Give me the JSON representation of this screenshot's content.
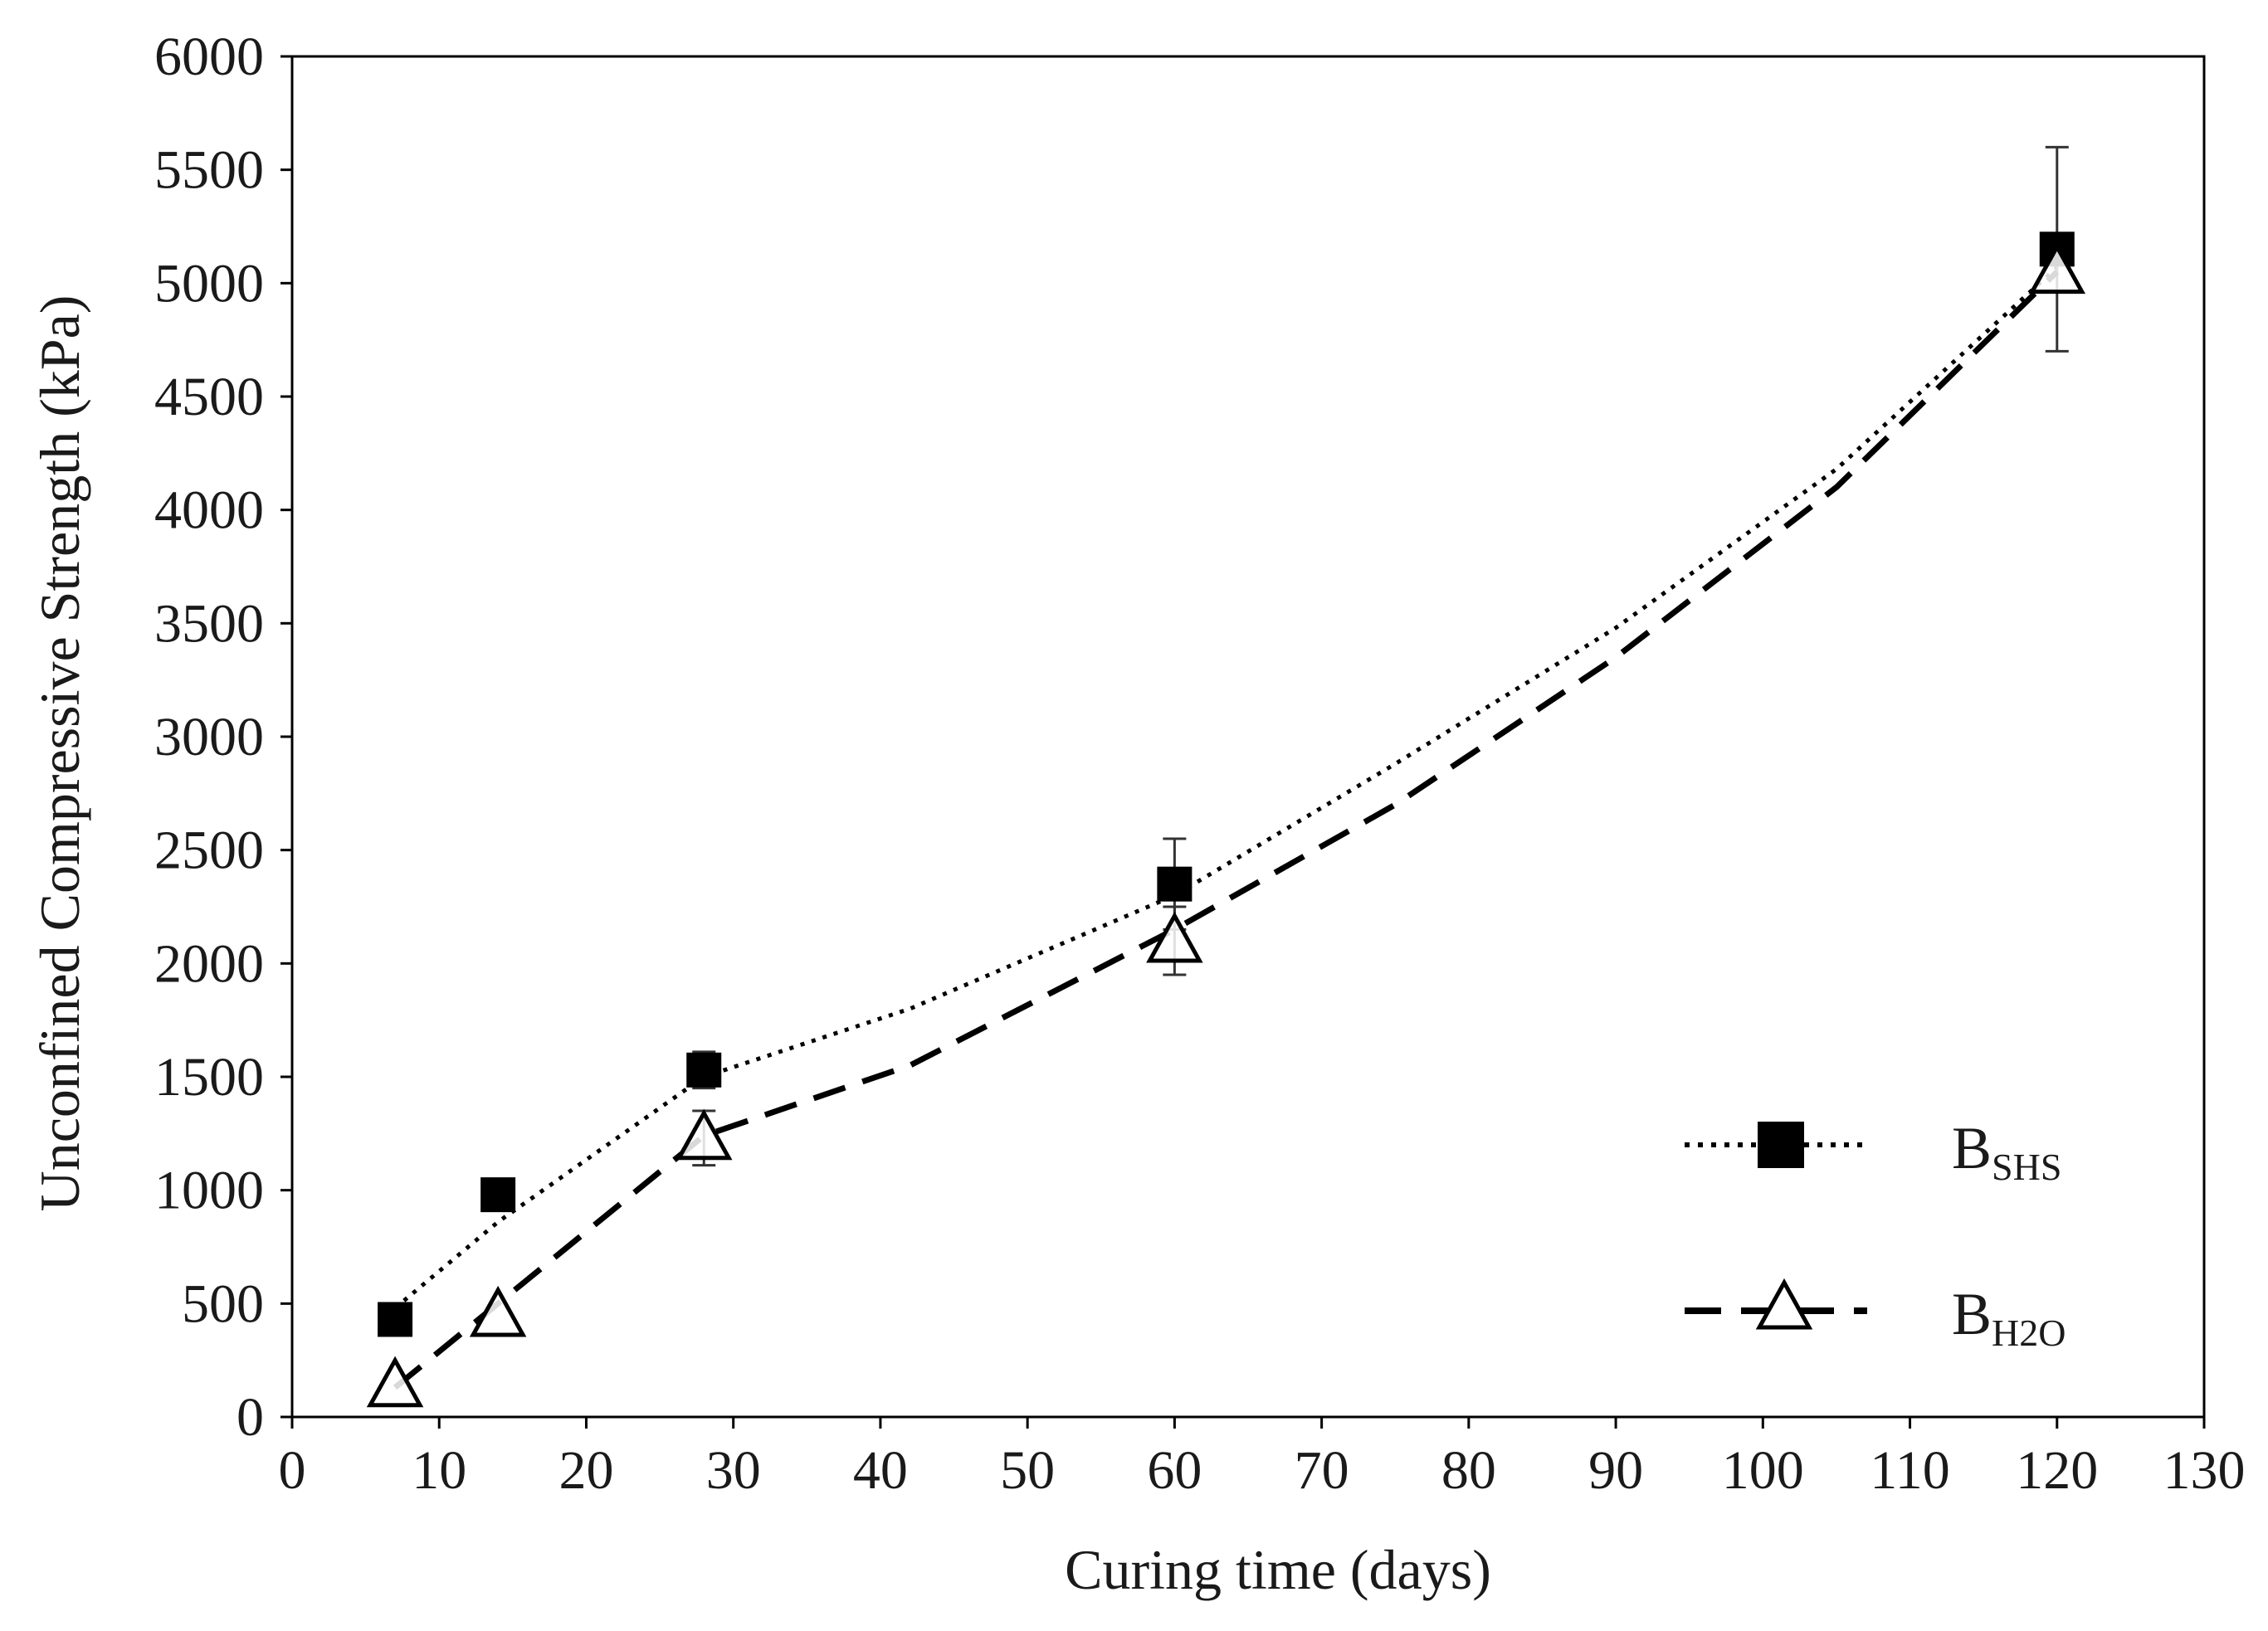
{
  "chart_data": {
    "type": "line",
    "title": "",
    "xlabel": "Curing time (days)",
    "ylabel": "Unconfined Compressive Strength (kPa)",
    "xlim": [
      0,
      130
    ],
    "ylim": [
      0,
      6000
    ],
    "xticks": [
      0,
      10,
      20,
      30,
      40,
      50,
      60,
      70,
      80,
      90,
      100,
      110,
      120,
      130
    ],
    "yticks": [
      0,
      500,
      1000,
      1500,
      2000,
      2500,
      3000,
      3500,
      4000,
      4500,
      5000,
      5500,
      6000
    ],
    "grid": false,
    "legend_position": "bottom-right",
    "series": [
      {
        "name": "B",
        "subscript": "SHS",
        "marker": "filled-square",
        "line_style": "dotted",
        "color": "#000000",
        "x": [
          7,
          14,
          28,
          60,
          120
        ],
        "y": [
          430,
          980,
          1530,
          2350,
          5150
        ],
        "error": [
          0,
          0,
          80,
          200,
          450
        ],
        "trend_x": [
          7,
          14,
          28,
          42,
          60,
          75,
          90,
          105,
          120
        ],
        "trend_y": [
          480,
          860,
          1500,
          1800,
          2300,
          2880,
          3480,
          4180,
          5070
        ]
      },
      {
        "name": "B",
        "subscript": "H2O",
        "marker": "open-triangle",
        "line_style": "dashed",
        "color": "#000000",
        "x": [
          7,
          14,
          28,
          60,
          120
        ],
        "y": [
          140,
          450,
          1230,
          2100,
          5050
        ],
        "error": [
          0,
          0,
          120,
          150,
          0
        ],
        "trend_x": [
          7,
          14,
          28,
          42,
          60,
          75,
          90,
          105,
          120
        ],
        "trend_y": [
          130,
          500,
          1240,
          1550,
          2150,
          2700,
          3350,
          4100,
          5050
        ]
      }
    ]
  }
}
